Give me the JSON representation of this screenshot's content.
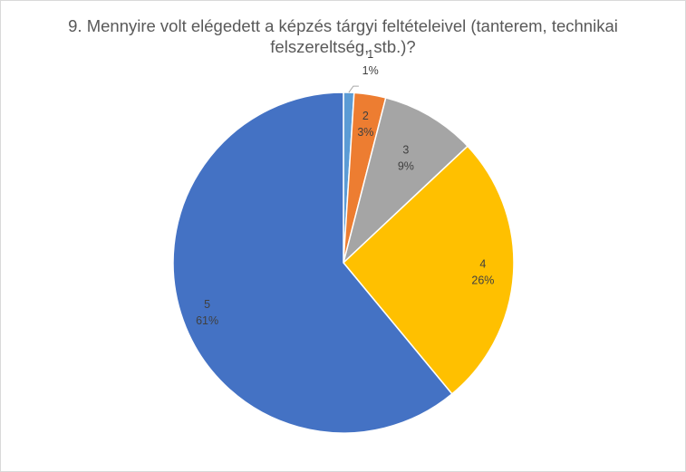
{
  "chart_data": {
    "type": "pie",
    "title_lines": [
      "9. Mennyire volt elégedett  a képzés tárgyi feltételeivel (tanterem, technikai",
      "felszereltség, stb.)?"
    ],
    "categories": [
      "1",
      "2",
      "3",
      "4",
      "5"
    ],
    "values": [
      1,
      3,
      9,
      26,
      61
    ],
    "value_labels": [
      "1%",
      "3%",
      "9%",
      "26%",
      "61%"
    ],
    "colors": [
      "#5B9BD5",
      "#ED7D31",
      "#A5A5A5",
      "#FFC000",
      "#4472C4"
    ],
    "start_angle_deg": 0,
    "direction": "clockwise",
    "legend": "none",
    "data_labels": "category and percent"
  }
}
